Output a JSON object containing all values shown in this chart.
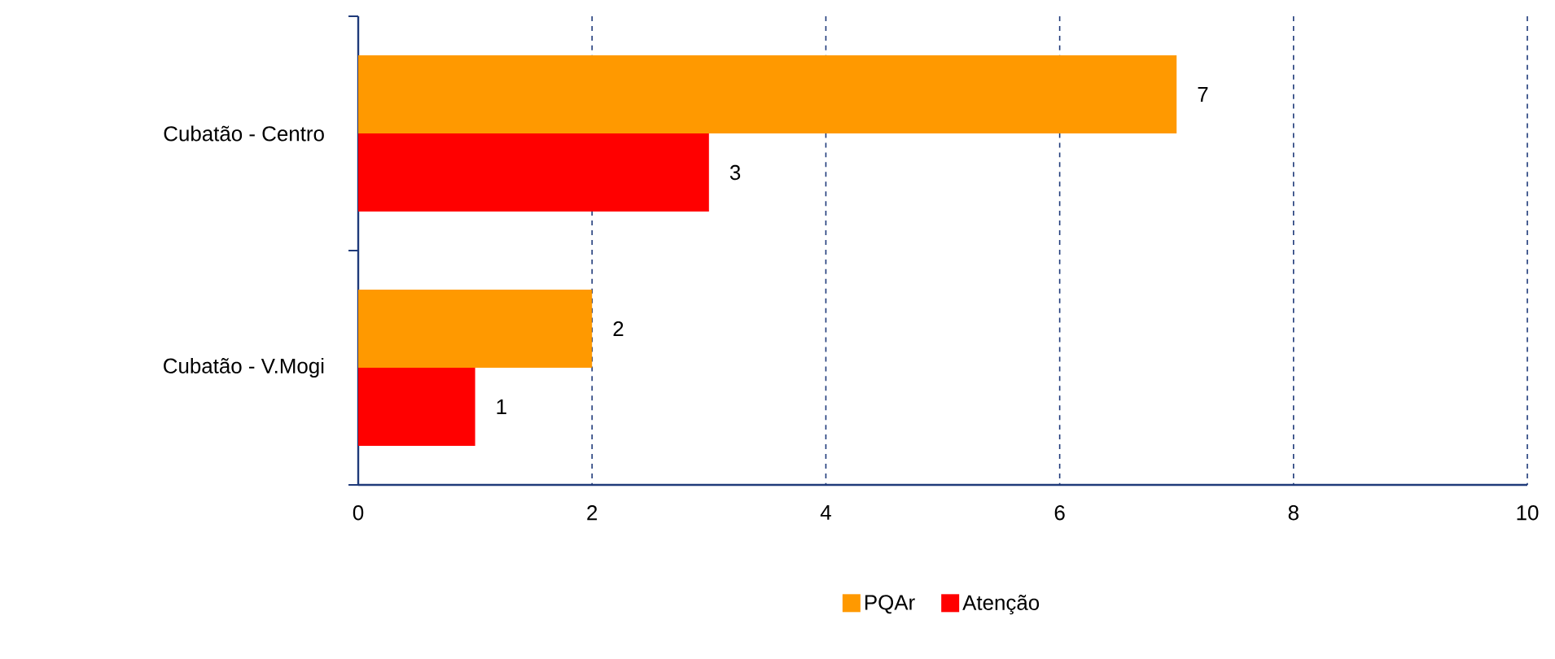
{
  "chart_data": {
    "type": "bar",
    "orientation": "horizontal",
    "categories": [
      "Cubatão - Centro",
      "Cubatão - V.Mogi"
    ],
    "series": [
      {
        "name": "PQAr",
        "color": "#ff9900",
        "values": [
          7,
          2
        ]
      },
      {
        "name": "Atenção",
        "color": "#ff0000",
        "values": [
          3,
          1
        ]
      }
    ],
    "xlim": [
      0,
      10
    ],
    "xticks": [
      0,
      2,
      4,
      6,
      8,
      10
    ],
    "grid": "x",
    "legend": "bottom",
    "data_labels": true
  }
}
